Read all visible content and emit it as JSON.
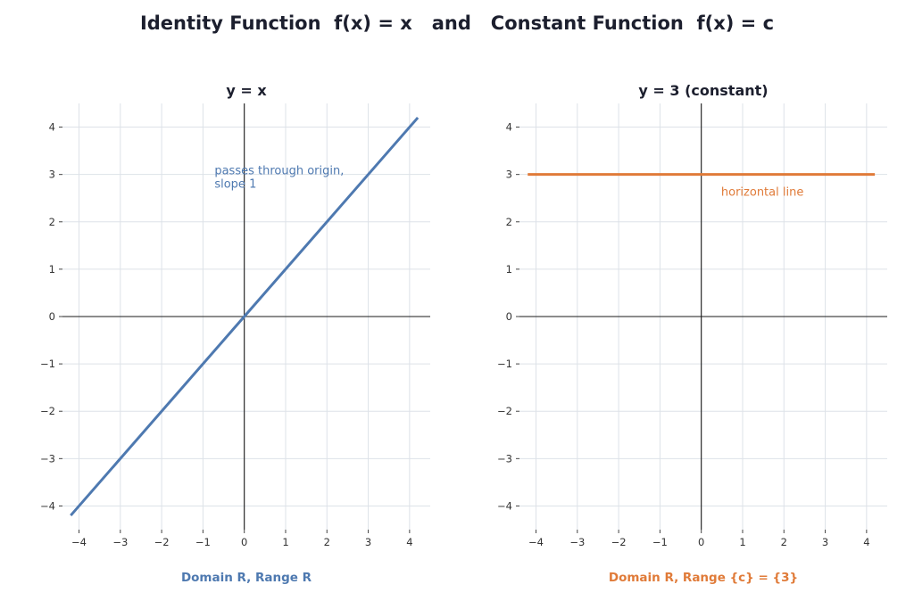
{
  "suptitle": "Identity Function  f(x) = x   and   Constant Function  f(x) = c",
  "colors": {
    "identity": "#4e79b0",
    "constant": "#e07b39",
    "grid": "#dde2e8",
    "axis": "#1a1a1a",
    "title": "#1c1f2e"
  },
  "chart_data": [
    {
      "type": "line",
      "title": "y = x",
      "xlabel": "",
      "ylabel": "",
      "xlim": [
        -4.4,
        4.5
      ],
      "ylim": [
        -4.5,
        4.5
      ],
      "xticks": [
        -4,
        -3,
        -2,
        -1,
        0,
        1,
        2,
        3,
        4
      ],
      "yticks": [
        -4,
        -3,
        -2,
        -1,
        0,
        1,
        2,
        3,
        4
      ],
      "grid": true,
      "series": [
        {
          "x": [
            -4.2,
            4.2
          ],
          "y": [
            -4.2,
            4.2
          ],
          "color": "#4e79b0"
        }
      ],
      "annotations": [
        {
          "text": "passes through origin,\nslope 1",
          "x": -0.72,
          "y": 3.0,
          "color": "#4e79b0"
        }
      ],
      "footer": "Domain R, Range R",
      "footer_color": "#4e79b0"
    },
    {
      "type": "line",
      "title": "y = 3 (constant)",
      "xlabel": "",
      "ylabel": "",
      "xlim": [
        -4.4,
        4.5
      ],
      "ylim": [
        -4.5,
        4.5
      ],
      "xticks": [
        -4,
        -3,
        -2,
        -1,
        0,
        1,
        2,
        3,
        4
      ],
      "yticks": [
        -4,
        -3,
        -2,
        -1,
        0,
        1,
        2,
        3,
        4
      ],
      "grid": true,
      "series": [
        {
          "x": [
            -4.2,
            4.2
          ],
          "y": [
            3,
            3
          ],
          "color": "#e07b39"
        }
      ],
      "annotations": [
        {
          "text": "horizontal line",
          "x": 0.48,
          "y": 2.55,
          "color": "#e07b39"
        }
      ],
      "footer": "Domain R, Range {c} = {3}",
      "footer_color": "#e07b39"
    }
  ]
}
